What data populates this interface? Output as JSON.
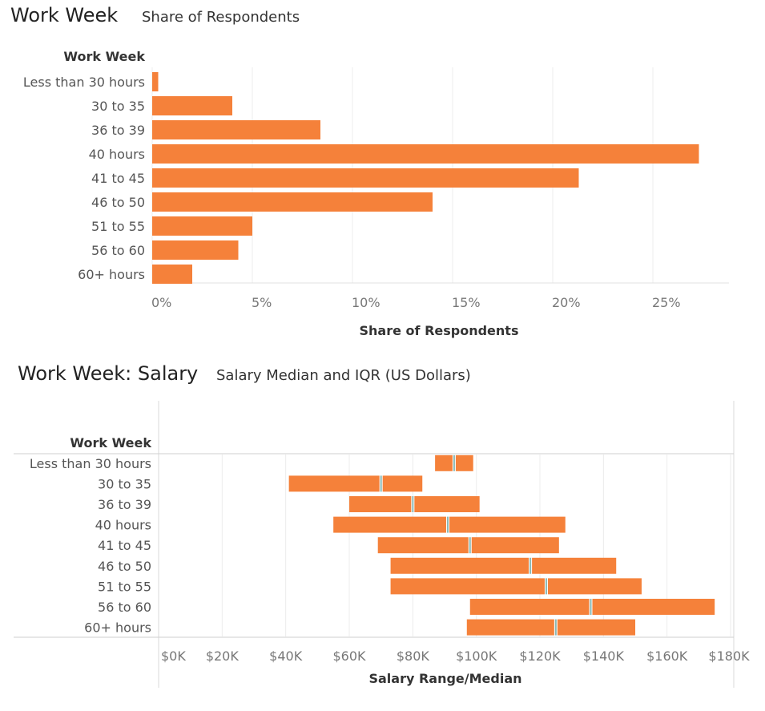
{
  "chart1": {
    "title": "Work Week",
    "subtitle": "Share of Respondents",
    "row_header": "Work Week",
    "xlabel": "Share of Respondents",
    "bar_color": "#f5813a",
    "chart_data": {
      "type": "bar",
      "orientation": "horizontal",
      "categories": [
        "Less than 30 hours",
        "30 to 35",
        "36 to 39",
        "40 hours",
        "41 to 45",
        "46 to 50",
        "51 to 55",
        "56 to 60",
        "60+ hours"
      ],
      "values": [
        0.3,
        4.0,
        8.4,
        27.3,
        21.3,
        14.0,
        5.0,
        4.3,
        2.0
      ],
      "xlim": [
        0,
        28.8
      ],
      "ticks": [
        0,
        5,
        10,
        15,
        20,
        25
      ],
      "tick_labels": [
        "0%",
        "5%",
        "10%",
        "15%",
        "20%",
        "25%"
      ]
    }
  },
  "chart2": {
    "title": "Work Week: Salary",
    "subtitle": "Salary Median and IQR (US Dollars)",
    "row_header": "Work Week",
    "xlabel": "Salary Range/Median",
    "bar_color": "#f5813a",
    "chart_data": {
      "type": "range",
      "categories": [
        "Less than 30 hours",
        "30 to 35",
        "36 to 39",
        "40 hours",
        "41 to 45",
        "46 to 50",
        "51 to 55",
        "56 to 60",
        "60+ hours"
      ],
      "q1": [
        87000,
        41000,
        60000,
        55000,
        69000,
        73000,
        73000,
        98000,
        97000
      ],
      "median": [
        93000,
        70000,
        80000,
        91000,
        98000,
        117000,
        122000,
        136000,
        125000
      ],
      "q3": [
        99000,
        83000,
        101000,
        128000,
        126000,
        144000,
        152000,
        175000,
        150000
      ],
      "xlim": [
        0,
        181000
      ],
      "ticks": [
        0,
        20000,
        40000,
        60000,
        80000,
        100000,
        120000,
        140000,
        160000,
        180000
      ],
      "tick_labels": [
        "$0K",
        "$20K",
        "$40K",
        "$60K",
        "$80K",
        "$100K",
        "$120K",
        "$140K",
        "$160K",
        "$180K"
      ]
    }
  }
}
